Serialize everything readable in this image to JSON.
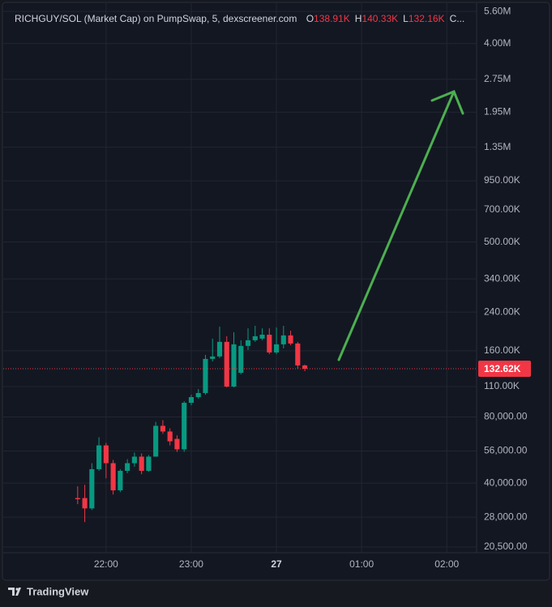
{
  "chart_data": {
    "type": "candlestick",
    "title": "RICHGUY/SOL (Market Cap) on PumpSwap, 5, dexscreener.com",
    "ohlc_legend": [
      {
        "key": "O",
        "value": "138.91K"
      },
      {
        "key": "H",
        "value": "140.33K"
      },
      {
        "key": "L",
        "value": "132.16K"
      },
      {
        "key": "C..."
      }
    ],
    "x": [
      "21:40",
      "21:45",
      "21:50",
      "21:55",
      "22:00",
      "22:05",
      "22:10",
      "22:15",
      "22:20",
      "22:25",
      "22:30",
      "22:35",
      "22:40",
      "22:45",
      "22:50",
      "22:55",
      "23:00",
      "23:05",
      "23:10",
      "23:15",
      "23:20",
      "23:25",
      "23:30",
      "23:35",
      "23:40",
      "23:45",
      "23:50",
      "23:55",
      "00:00",
      "00:05",
      "00:10",
      "00:15",
      "00:20"
    ],
    "open": [
      34200,
      34200,
      30700,
      46300,
      59400,
      49300,
      37100,
      45500,
      49300,
      52800,
      45500,
      52800,
      72900,
      68700,
      63600,
      57000,
      92800,
      98500,
      102800,
      147000,
      150800,
      175700,
      110000,
      127100,
      168400,
      178700,
      181800,
      189400,
      157300,
      171200,
      188000,
      172700,
      137300
    ],
    "high": [
      38700,
      39300,
      49300,
      64700,
      61000,
      51000,
      46300,
      51400,
      55100,
      54600,
      53700,
      76000,
      77300,
      71000,
      66000,
      94400,
      101000,
      107200,
      153300,
      181800,
      206000,
      186400,
      194300,
      178700,
      202500,
      207800,
      202500,
      202500,
      204300,
      207800,
      197400,
      175700,
      138500
    ],
    "low": [
      32100,
      26600,
      30200,
      45500,
      42100,
      35500,
      36400,
      44400,
      47500,
      43900,
      45000,
      52800,
      67000,
      59400,
      55500,
      55500,
      90500,
      96800,
      101000,
      143200,
      148200,
      109100,
      109100,
      125000,
      161400,
      175700,
      178700,
      154600,
      154600,
      164100,
      169800,
      132700,
      129400
    ],
    "close": [
      33800,
      30700,
      46300,
      59400,
      49300,
      37100,
      45500,
      49300,
      52800,
      45500,
      52800,
      72900,
      68700,
      62000,
      57000,
      92800,
      98500,
      102800,
      147000,
      150800,
      175700,
      110000,
      171200,
      168400,
      178700,
      186400,
      189400,
      157300,
      171200,
      188000,
      172700,
      137300,
      132600
    ],
    "up_color": "#089981",
    "down_color": "#f23645",
    "log_scale": true,
    "grid": true,
    "xlim": [
      "20:51",
      "02:21"
    ],
    "xticks": [
      "22:00",
      "23:00",
      {
        "value": "00:00",
        "label": "27"
      },
      "01:00",
      "02:00"
    ],
    "ylim": [
      19300,
      6050000
    ],
    "yticks": [
      {
        "value": 5600000,
        "label": "5.60M"
      },
      {
        "value": 4000000,
        "label": "4.00M"
      },
      {
        "value": 2750000,
        "label": "2.75M"
      },
      {
        "value": 1950000,
        "label": "1.95M"
      },
      {
        "value": 1350000,
        "label": "1.35M"
      },
      {
        "value": 950000,
        "label": "950.00K"
      },
      {
        "value": 700000,
        "label": "700.00K"
      },
      {
        "value": 500000,
        "label": "500.00K"
      },
      {
        "value": 340000,
        "label": "340.00K"
      },
      {
        "value": 240000,
        "label": "240.00K"
      },
      {
        "value": 160000,
        "label": "160.00K"
      },
      {
        "value": 110000,
        "label": "110.00K"
      },
      {
        "value": 80000,
        "label": "80,000.00"
      },
      {
        "value": 56000,
        "label": "56,000.00"
      },
      {
        "value": 40000,
        "label": "40,000.00"
      },
      {
        "value": 28000,
        "label": "28,000.00"
      },
      {
        "value": 20500,
        "label": "20,500.00"
      }
    ],
    "last_price": {
      "value": 132620,
      "label": "132.62K"
    },
    "watermark": "TradingView"
  }
}
